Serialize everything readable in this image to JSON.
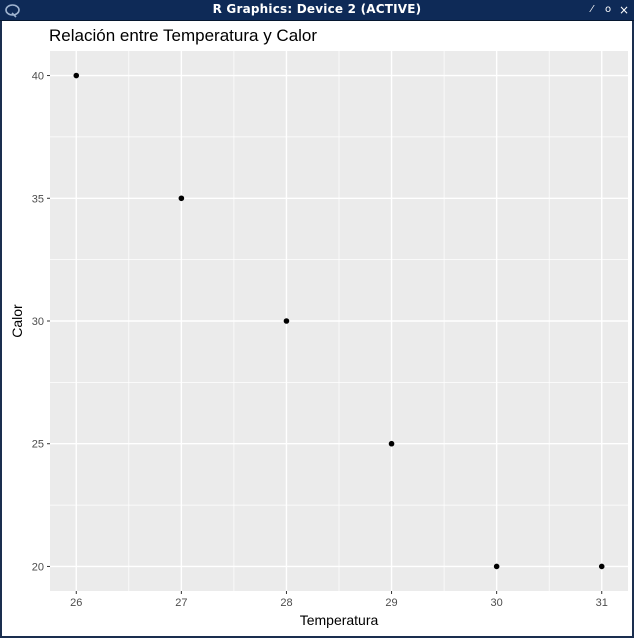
{
  "window": {
    "title": "R Graphics: Device 2 (ACTIVE)",
    "buttons": [
      {
        "name": "resize-window-button",
        "icon": "diagonal-line-icon",
        "glyph": "⁄"
      },
      {
        "name": "maximize-window-button",
        "icon": "circle-icon",
        "glyph": "o"
      },
      {
        "name": "close-window-button",
        "icon": "close-icon",
        "glyph": "×"
      }
    ]
  },
  "colors": {
    "panel_bg": "#ebebeb",
    "grid": "#ffffff",
    "point": "#000000",
    "titlebar": "#0e2a57"
  },
  "chart_data": {
    "type": "scatter",
    "title": "Relación entre Temperatura y Calor",
    "xlabel": "Temperatura",
    "ylabel": "Calor",
    "x": [
      26,
      27,
      28,
      29,
      30,
      31
    ],
    "y": [
      40,
      35,
      30,
      25,
      20,
      20
    ],
    "xticks": [
      26,
      27,
      28,
      29,
      30,
      31
    ],
    "yticks": [
      20,
      25,
      30,
      35,
      40
    ],
    "xlim": [
      25.75,
      31.25
    ],
    "ylim": [
      19,
      41
    ],
    "grid": true
  }
}
